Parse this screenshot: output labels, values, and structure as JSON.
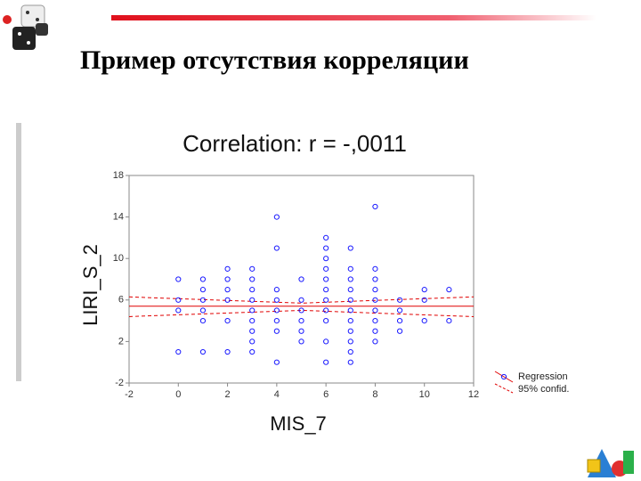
{
  "slide": {
    "title": "Пример отсутствия корреляции"
  },
  "chart_data": {
    "type": "scatter",
    "title": "Correlation: r = -,0011",
    "x_label": "MIS_7",
    "y_label": "LIRI_S_2",
    "color": "#1a1aff",
    "xlim": [
      -2,
      12
    ],
    "xticks": [
      -2,
      0,
      2,
      4,
      6,
      8,
      10,
      12
    ],
    "ylim": [
      -2,
      18
    ],
    "yticks": [
      18,
      14,
      10,
      6,
      2,
      -2
    ],
    "grid": false,
    "x": [
      0,
      0,
      0,
      0,
      1,
      1,
      1,
      1,
      1,
      1,
      2,
      2,
      2,
      2,
      2,
      2,
      3,
      3,
      3,
      3,
      3,
      3,
      3,
      3,
      3,
      4,
      4,
      4,
      4,
      4,
      4,
      4,
      4,
      5,
      5,
      5,
      5,
      5,
      5,
      6,
      6,
      6,
      6,
      6,
      6,
      6,
      6,
      6,
      6,
      6,
      7,
      7,
      7,
      7,
      7,
      7,
      7,
      7,
      7,
      7,
      7,
      8,
      8,
      8,
      8,
      8,
      8,
      8,
      8,
      8,
      9,
      9,
      9,
      9,
      10,
      10,
      10,
      11,
      11
    ],
    "values": [
      8,
      6,
      5,
      1,
      8,
      7,
      6,
      5,
      4,
      1,
      9,
      8,
      7,
      6,
      4,
      1,
      9,
      8,
      7,
      6,
      5,
      4,
      3,
      2,
      1,
      14,
      11,
      7,
      6,
      5,
      4,
      3,
      0,
      8,
      6,
      5,
      4,
      3,
      2,
      12,
      11,
      10,
      9,
      8,
      7,
      6,
      5,
      4,
      2,
      0,
      11,
      9,
      8,
      7,
      6,
      5,
      4,
      3,
      2,
      1,
      0,
      15,
      9,
      8,
      7,
      6,
      5,
      4,
      3,
      2,
      6,
      5,
      4,
      3,
      7,
      6,
      4,
      7,
      4
    ],
    "regression": {
      "name": "Regression",
      "color": "#e00000",
      "x": [
        -2,
        12
      ],
      "values": [
        5.4,
        5.4
      ]
    },
    "confidence": {
      "name": "95% confid.",
      "color": "#e00000",
      "x": [
        -2,
        5,
        12
      ],
      "upper": [
        6.3,
        5.7,
        6.3
      ],
      "lower": [
        4.4,
        5.0,
        4.4
      ]
    },
    "legend": "bottom-right"
  }
}
